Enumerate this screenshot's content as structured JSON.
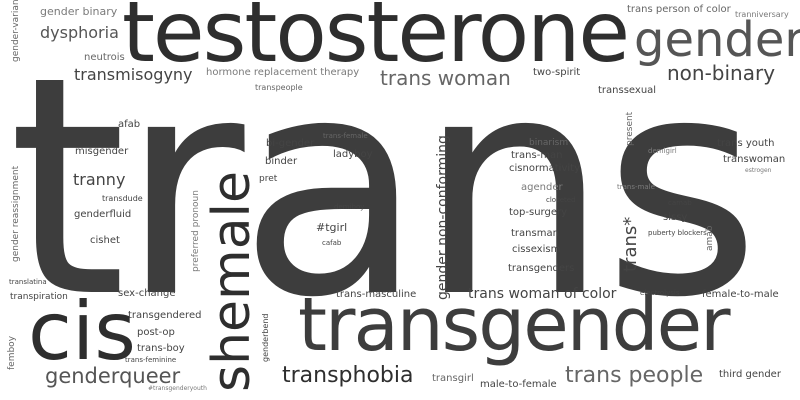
{
  "words": [
    "trans",
    "testosterone",
    "transgender",
    "cis",
    "shemale",
    "gender",
    "non-binary",
    "trans woman",
    "transphobia",
    "trans people",
    "genderqueer",
    "dysphoria",
    "transmisogyny",
    "tranny",
    "gender non-conforming",
    "trans woman of color",
    "trans*",
    "gender binary",
    "gender-variant",
    "neutrois",
    "hormone replacement therapy",
    "two-spirit",
    "transpeople",
    "trans person of color",
    "tranniversary",
    "transsexual",
    "afab",
    "misgender",
    "bi-gender",
    "binder",
    "pret",
    "ladyboy",
    "trans-female",
    "present",
    "demigirl",
    "binarism",
    "trans-man",
    "cisnormativity",
    "trans youth",
    "transwoman",
    "estrogen",
    "gender reassignment",
    "transdude",
    "genderfluid",
    "cishet",
    "preferred pronoun",
    "demiboy",
    "#tgirl",
    "cafab",
    "agender",
    "closeted",
    "top-surgery",
    "transman",
    "cissexism",
    "transgenders",
    "trans-male",
    "camab",
    "sissy",
    "puberty blockers",
    "amab",
    "translatina",
    "transpiration",
    "sex-change",
    "trans-masculine",
    "electrolysis",
    "female-to-male",
    "transgendered",
    "genderbend",
    "post-op",
    "trans-boy",
    "trans-feminine",
    "#transgenderyouth",
    "femboy",
    "transgirl",
    "male-to-female",
    "third gender"
  ]
}
